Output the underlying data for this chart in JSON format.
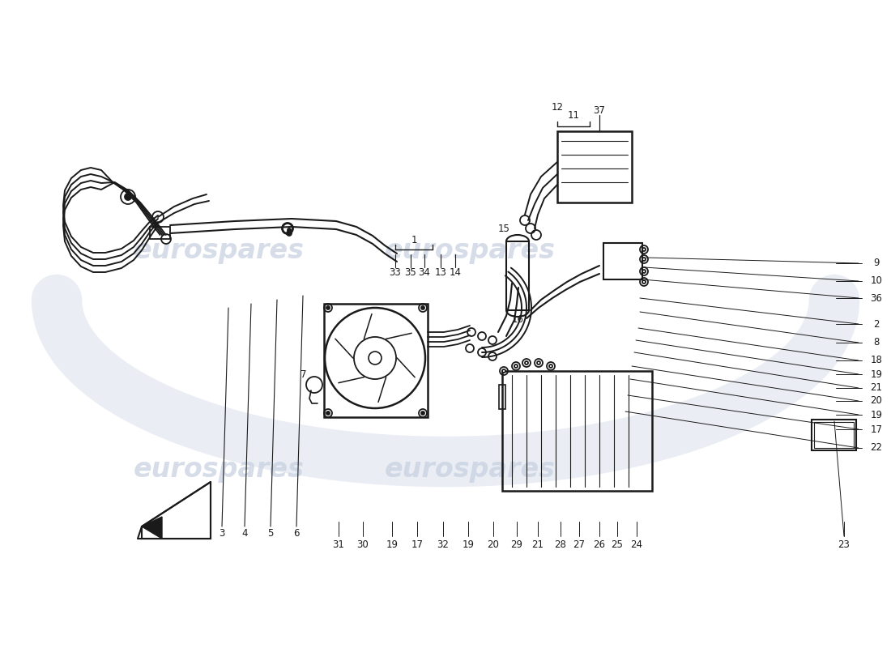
{
  "bg_color": "#ffffff",
  "line_color": "#1a1a1a",
  "watermark_color": "#c5cfe0",
  "arc_color": "#c5cfe0",
  "right_labels": [
    [
      "9",
      1082,
      325
    ],
    [
      "10",
      1082,
      347
    ],
    [
      "36",
      1082,
      368
    ],
    [
      "2",
      1082,
      400
    ],
    [
      "8",
      1082,
      423
    ],
    [
      "18",
      1082,
      445
    ],
    [
      "19",
      1082,
      462
    ],
    [
      "21",
      1082,
      479
    ],
    [
      "20",
      1082,
      495
    ],
    [
      "19",
      1082,
      512
    ],
    [
      "17",
      1082,
      530
    ],
    [
      "22",
      1082,
      553
    ]
  ],
  "bottom_labels": [
    [
      "31",
      418,
      672
    ],
    [
      "30",
      448,
      672
    ],
    [
      "19",
      484,
      672
    ],
    [
      "17",
      515,
      672
    ],
    [
      "32",
      547,
      672
    ],
    [
      "19",
      578,
      672
    ],
    [
      "20",
      609,
      672
    ],
    [
      "29",
      638,
      672
    ],
    [
      "21",
      664,
      672
    ],
    [
      "28",
      692,
      672
    ],
    [
      "27",
      715,
      672
    ],
    [
      "26",
      740,
      672
    ],
    [
      "25",
      762,
      672
    ],
    [
      "24",
      786,
      672
    ],
    [
      "23",
      1042,
      672
    ]
  ]
}
